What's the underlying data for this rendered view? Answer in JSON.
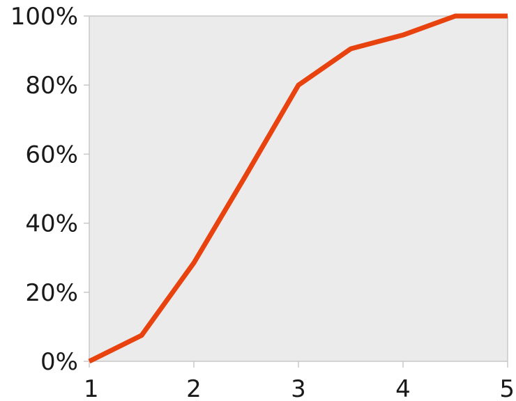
{
  "chart_data": {
    "type": "line",
    "title": "",
    "xlabel": "",
    "ylabel": "",
    "xlim": [
      1,
      5
    ],
    "ylim": [
      0,
      100
    ],
    "x_ticks": [
      1,
      2,
      3,
      4,
      5
    ],
    "x_tick_labels": [
      "1",
      "2",
      "3",
      "4",
      "5"
    ],
    "y_ticks": [
      0,
      20,
      40,
      60,
      80,
      100
    ],
    "y_tick_labels": [
      "0%",
      "20%",
      "40%",
      "60%",
      "80%",
      "100%"
    ],
    "grid": false,
    "legend": "none",
    "series": [
      {
        "color": "#e8420f",
        "x": [
          1,
          1.5,
          2,
          2.5,
          3,
          3.5,
          4,
          4.5,
          5
        ],
        "y": [
          0,
          7.5,
          28.5,
          54,
          80,
          90.5,
          94.5,
          100,
          100
        ]
      }
    ],
    "plot_background": "#ebebeb",
    "axis_color": "#c8c8c8"
  }
}
